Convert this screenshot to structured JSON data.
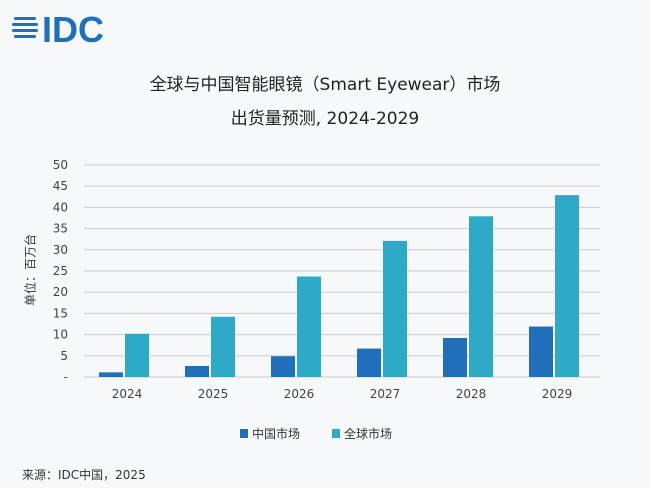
{
  "logo": {
    "text": "IDC"
  },
  "chart_data": {
    "type": "bar",
    "title": "全球与中国智能眼镜（Smart Eyewear）市场",
    "subtitle": "出货量预测, 2024-2029",
    "ylabel": "单位：百万台",
    "xlabel": "",
    "categories": [
      "2024",
      "2025",
      "2026",
      "2027",
      "2028",
      "2029"
    ],
    "series": [
      {
        "name": "中国市场",
        "color": "#1f6fba",
        "values": [
          1.1,
          2.6,
          4.9,
          6.7,
          9.2,
          11.9
        ]
      },
      {
        "name": "全球市场",
        "color": "#2eaac8",
        "values": [
          10.2,
          14.2,
          23.7,
          32.1,
          37.9,
          42.9
        ]
      }
    ],
    "ylim": [
      0,
      50
    ],
    "yticks": [
      "-",
      "5",
      "10",
      "15",
      "20",
      "25",
      "30",
      "35",
      "40",
      "45",
      "50"
    ],
    "grid": true,
    "legend": "bottom"
  },
  "source": "来源：IDC中国，2025"
}
